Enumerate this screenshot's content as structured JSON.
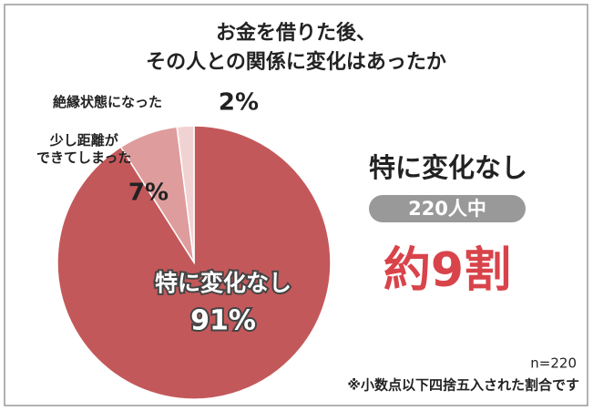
{
  "chart_data": {
    "type": "pie",
    "title": [
      "お金を借りた後、",
      "その人との関係に変化はあったか"
    ],
    "categories": [
      "特に変化なし",
      "少し距離が\nできてしまった",
      "絶縁状態になった"
    ],
    "values": [
      91,
      7,
      2
    ],
    "value_labels": [
      "91%",
      "7%",
      "2%"
    ],
    "colors": [
      "#c3585a",
      "#df9c9c",
      "#f1d2d2"
    ],
    "headline": "特に変化なし",
    "badge": "220人中",
    "highlight": "約9割",
    "sample": "n=220",
    "note": "※小数点以下四捨五入された割合です"
  }
}
